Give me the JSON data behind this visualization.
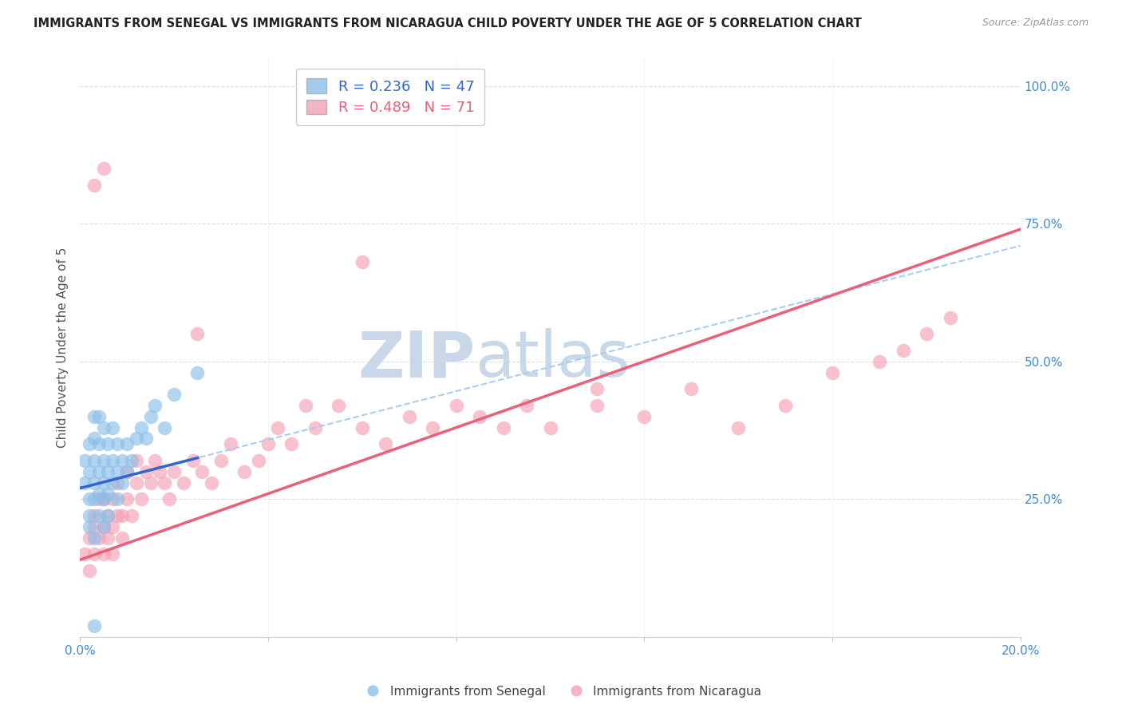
{
  "title": "IMMIGRANTS FROM SENEGAL VS IMMIGRANTS FROM NICARAGUA CHILD POVERTY UNDER THE AGE OF 5 CORRELATION CHART",
  "source": "Source: ZipAtlas.com",
  "ylabel": "Child Poverty Under the Age of 5",
  "senegal_R": 0.236,
  "senegal_N": 47,
  "nicaragua_R": 0.489,
  "nicaragua_N": 71,
  "senegal_color": "#8BBFE8",
  "nicaragua_color": "#F4A0B5",
  "senegal_line_color": "#3366CC",
  "nicaragua_line_color": "#E8607A",
  "senegal_dashed_color": "#AACCEE",
  "background_color": "#FFFFFF",
  "grid_color": "#DDDDDD",
  "watermark_color": "#C8D8E8",
  "xlim": [
    0,
    0.2
  ],
  "ylim": [
    0,
    1.05
  ],
  "senegal_x": [
    0.001,
    0.001,
    0.002,
    0.002,
    0.002,
    0.002,
    0.002,
    0.003,
    0.003,
    0.003,
    0.003,
    0.003,
    0.003,
    0.004,
    0.004,
    0.004,
    0.004,
    0.004,
    0.005,
    0.005,
    0.005,
    0.005,
    0.005,
    0.006,
    0.006,
    0.006,
    0.006,
    0.007,
    0.007,
    0.007,
    0.008,
    0.008,
    0.008,
    0.009,
    0.009,
    0.01,
    0.01,
    0.011,
    0.012,
    0.013,
    0.014,
    0.015,
    0.016,
    0.018,
    0.02,
    0.025,
    0.003
  ],
  "senegal_y": [
    0.28,
    0.32,
    0.22,
    0.25,
    0.3,
    0.35,
    0.2,
    0.25,
    0.28,
    0.32,
    0.36,
    0.4,
    0.18,
    0.22,
    0.26,
    0.3,
    0.35,
    0.4,
    0.2,
    0.25,
    0.28,
    0.32,
    0.38,
    0.22,
    0.26,
    0.3,
    0.35,
    0.28,
    0.32,
    0.38,
    0.25,
    0.3,
    0.35,
    0.28,
    0.32,
    0.3,
    0.35,
    0.32,
    0.36,
    0.38,
    0.36,
    0.4,
    0.42,
    0.38,
    0.44,
    0.48,
    0.02
  ],
  "nicaragua_x": [
    0.001,
    0.002,
    0.002,
    0.003,
    0.003,
    0.003,
    0.004,
    0.004,
    0.005,
    0.005,
    0.005,
    0.006,
    0.006,
    0.007,
    0.007,
    0.007,
    0.008,
    0.008,
    0.009,
    0.009,
    0.01,
    0.01,
    0.011,
    0.012,
    0.012,
    0.013,
    0.014,
    0.015,
    0.016,
    0.017,
    0.018,
    0.019,
    0.02,
    0.022,
    0.024,
    0.026,
    0.028,
    0.03,
    0.032,
    0.035,
    0.038,
    0.04,
    0.042,
    0.045,
    0.048,
    0.05,
    0.055,
    0.06,
    0.065,
    0.07,
    0.075,
    0.08,
    0.085,
    0.09,
    0.095,
    0.1,
    0.11,
    0.12,
    0.13,
    0.14,
    0.15,
    0.16,
    0.17,
    0.175,
    0.18,
    0.185,
    0.003,
    0.005,
    0.025,
    0.06,
    0.11
  ],
  "nicaragua_y": [
    0.15,
    0.12,
    0.18,
    0.15,
    0.2,
    0.22,
    0.18,
    0.25,
    0.15,
    0.2,
    0.25,
    0.18,
    0.22,
    0.15,
    0.2,
    0.25,
    0.22,
    0.28,
    0.18,
    0.22,
    0.25,
    0.3,
    0.22,
    0.28,
    0.32,
    0.25,
    0.3,
    0.28,
    0.32,
    0.3,
    0.28,
    0.25,
    0.3,
    0.28,
    0.32,
    0.3,
    0.28,
    0.32,
    0.35,
    0.3,
    0.32,
    0.35,
    0.38,
    0.35,
    0.42,
    0.38,
    0.42,
    0.38,
    0.35,
    0.4,
    0.38,
    0.42,
    0.4,
    0.38,
    0.42,
    0.38,
    0.42,
    0.4,
    0.45,
    0.38,
    0.42,
    0.48,
    0.5,
    0.52,
    0.55,
    0.58,
    0.82,
    0.85,
    0.55,
    0.68,
    0.45
  ]
}
